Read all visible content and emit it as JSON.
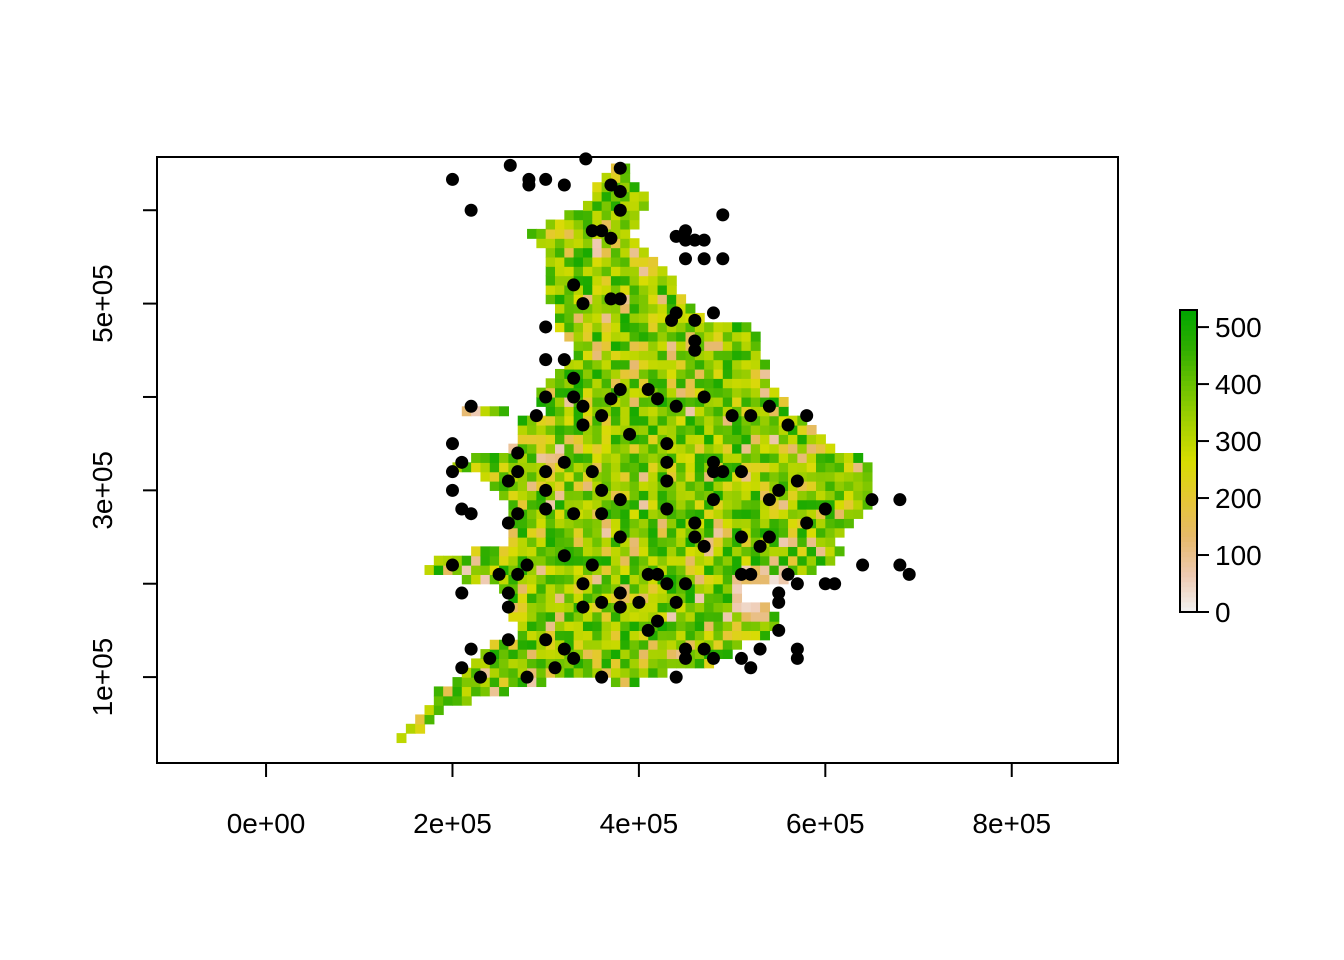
{
  "chart_data": {
    "type": "raster_map_with_points",
    "x_ticks": [
      {
        "value": 0,
        "label": "0e+00"
      },
      {
        "value": 200000,
        "label": "2e+05"
      },
      {
        "value": 400000,
        "label": "4e+05"
      },
      {
        "value": 600000,
        "label": "6e+05"
      },
      {
        "value": 800000,
        "label": "8e+05"
      }
    ],
    "y_ticks": [
      {
        "value": 100000,
        "label": "1e+05"
      },
      {
        "value": 200000,
        "label": ""
      },
      {
        "value": 300000,
        "label": "3e+05"
      },
      {
        "value": 400000,
        "label": ""
      },
      {
        "value": 500000,
        "label": "5e+05"
      },
      {
        "value": 600000,
        "label": ""
      }
    ],
    "xlim": [
      -117000,
      914000
    ],
    "ylim": [
      8000,
      657000
    ],
    "legend": {
      "position": "right",
      "min": 0,
      "max": 530,
      "ticks": [
        {
          "value": 0,
          "label": "0"
        },
        {
          "value": 100,
          "label": "100"
        },
        {
          "value": 200,
          "label": "200"
        },
        {
          "value": 300,
          "label": "300"
        },
        {
          "value": 400,
          "label": "400"
        },
        {
          "value": 500,
          "label": "500"
        }
      ],
      "colors": [
        "#f2f2f2",
        "#eec9b0",
        "#e6b96a",
        "#e6c635",
        "#d7dd00",
        "#a6d100",
        "#6cc200",
        "#2fae00",
        "#00a600"
      ]
    },
    "raster_cell_size": 10000,
    "raster_area": "England and Wales",
    "points": [
      [
        200000,
        633000
      ],
      [
        262000,
        648000
      ],
      [
        282000,
        633000
      ],
      [
        300000,
        633000
      ],
      [
        320000,
        627000
      ],
      [
        343000,
        655000
      ],
      [
        370000,
        627000
      ],
      [
        380000,
        645000
      ],
      [
        282000,
        627000
      ],
      [
        220000,
        600000
      ],
      [
        380000,
        600000
      ],
      [
        490000,
        595000
      ],
      [
        350000,
        578000
      ],
      [
        360000,
        578000
      ],
      [
        370000,
        570000
      ],
      [
        380000,
        620000
      ],
      [
        440000,
        572000
      ],
      [
        450000,
        578000
      ],
      [
        450000,
        568000
      ],
      [
        460000,
        568000
      ],
      [
        470000,
        568000
      ],
      [
        450000,
        548000
      ],
      [
        470000,
        548000
      ],
      [
        490000,
        548000
      ],
      [
        330000,
        520000
      ],
      [
        340000,
        500000
      ],
      [
        370000,
        505000
      ],
      [
        380000,
        505000
      ],
      [
        440000,
        490000
      ],
      [
        435000,
        482000
      ],
      [
        460000,
        482000
      ],
      [
        480000,
        490000
      ],
      [
        460000,
        460000
      ],
      [
        460000,
        450000
      ],
      [
        300000,
        475000
      ],
      [
        300000,
        440000
      ],
      [
        320000,
        440000
      ],
      [
        330000,
        420000
      ],
      [
        300000,
        400000
      ],
      [
        330000,
        400000
      ],
      [
        340000,
        390000
      ],
      [
        370000,
        398000
      ],
      [
        380000,
        408000
      ],
      [
        410000,
        408000
      ],
      [
        420000,
        398000
      ],
      [
        440000,
        390000
      ],
      [
        470000,
        400000
      ],
      [
        220000,
        390000
      ],
      [
        290000,
        380000
      ],
      [
        360000,
        380000
      ],
      [
        340000,
        370000
      ],
      [
        200000,
        350000
      ],
      [
        210000,
        330000
      ],
      [
        200000,
        320000
      ],
      [
        270000,
        320000
      ],
      [
        270000,
        340000
      ],
      [
        300000,
        320000
      ],
      [
        320000,
        330000
      ],
      [
        350000,
        320000
      ],
      [
        390000,
        360000
      ],
      [
        430000,
        350000
      ],
      [
        430000,
        330000
      ],
      [
        480000,
        320000
      ],
      [
        480000,
        330000
      ],
      [
        490000,
        320000
      ],
      [
        510000,
        320000
      ],
      [
        500000,
        380000
      ],
      [
        520000,
        380000
      ],
      [
        540000,
        390000
      ],
      [
        560000,
        370000
      ],
      [
        580000,
        380000
      ],
      [
        200000,
        300000
      ],
      [
        300000,
        300000
      ],
      [
        260000,
        310000
      ],
      [
        360000,
        300000
      ],
      [
        380000,
        290000
      ],
      [
        430000,
        310000
      ],
      [
        480000,
        290000
      ],
      [
        540000,
        290000
      ],
      [
        550000,
        300000
      ],
      [
        570000,
        310000
      ],
      [
        650000,
        290000
      ],
      [
        680000,
        290000
      ],
      [
        210000,
        280000
      ],
      [
        220000,
        275000
      ],
      [
        270000,
        275000
      ],
      [
        300000,
        280000
      ],
      [
        330000,
        275000
      ],
      [
        360000,
        275000
      ],
      [
        430000,
        280000
      ],
      [
        260000,
        265000
      ],
      [
        460000,
        265000
      ],
      [
        580000,
        265000
      ],
      [
        600000,
        280000
      ],
      [
        380000,
        250000
      ],
      [
        460000,
        250000
      ],
      [
        470000,
        240000
      ],
      [
        510000,
        250000
      ],
      [
        530000,
        240000
      ],
      [
        540000,
        250000
      ],
      [
        200000,
        220000
      ],
      [
        320000,
        230000
      ],
      [
        250000,
        210000
      ],
      [
        270000,
        210000
      ],
      [
        280000,
        220000
      ],
      [
        350000,
        220000
      ],
      [
        340000,
        200000
      ],
      [
        410000,
        210000
      ],
      [
        420000,
        210000
      ],
      [
        430000,
        200000
      ],
      [
        450000,
        200000
      ],
      [
        510000,
        210000
      ],
      [
        520000,
        210000
      ],
      [
        560000,
        210000
      ],
      [
        570000,
        200000
      ],
      [
        600000,
        200000
      ],
      [
        610000,
        200000
      ],
      [
        640000,
        220000
      ],
      [
        680000,
        220000
      ],
      [
        690000,
        210000
      ],
      [
        210000,
        190000
      ],
      [
        260000,
        190000
      ],
      [
        260000,
        175000
      ],
      [
        340000,
        175000
      ],
      [
        360000,
        180000
      ],
      [
        380000,
        190000
      ],
      [
        380000,
        175000
      ],
      [
        400000,
        180000
      ],
      [
        440000,
        180000
      ],
      [
        550000,
        190000
      ],
      [
        550000,
        180000
      ],
      [
        420000,
        160000
      ],
      [
        410000,
        150000
      ],
      [
        550000,
        150000
      ],
      [
        300000,
        140000
      ],
      [
        260000,
        140000
      ],
      [
        220000,
        130000
      ],
      [
        320000,
        130000
      ],
      [
        330000,
        120000
      ],
      [
        240000,
        120000
      ],
      [
        210000,
        110000
      ],
      [
        230000,
        100000
      ],
      [
        280000,
        100000
      ],
      [
        310000,
        110000
      ],
      [
        360000,
        100000
      ],
      [
        440000,
        100000
      ],
      [
        450000,
        130000
      ],
      [
        450000,
        120000
      ],
      [
        470000,
        130000
      ],
      [
        480000,
        120000
      ],
      [
        510000,
        120000
      ],
      [
        520000,
        110000
      ],
      [
        530000,
        130000
      ],
      [
        570000,
        130000
      ],
      [
        570000,
        120000
      ]
    ]
  }
}
